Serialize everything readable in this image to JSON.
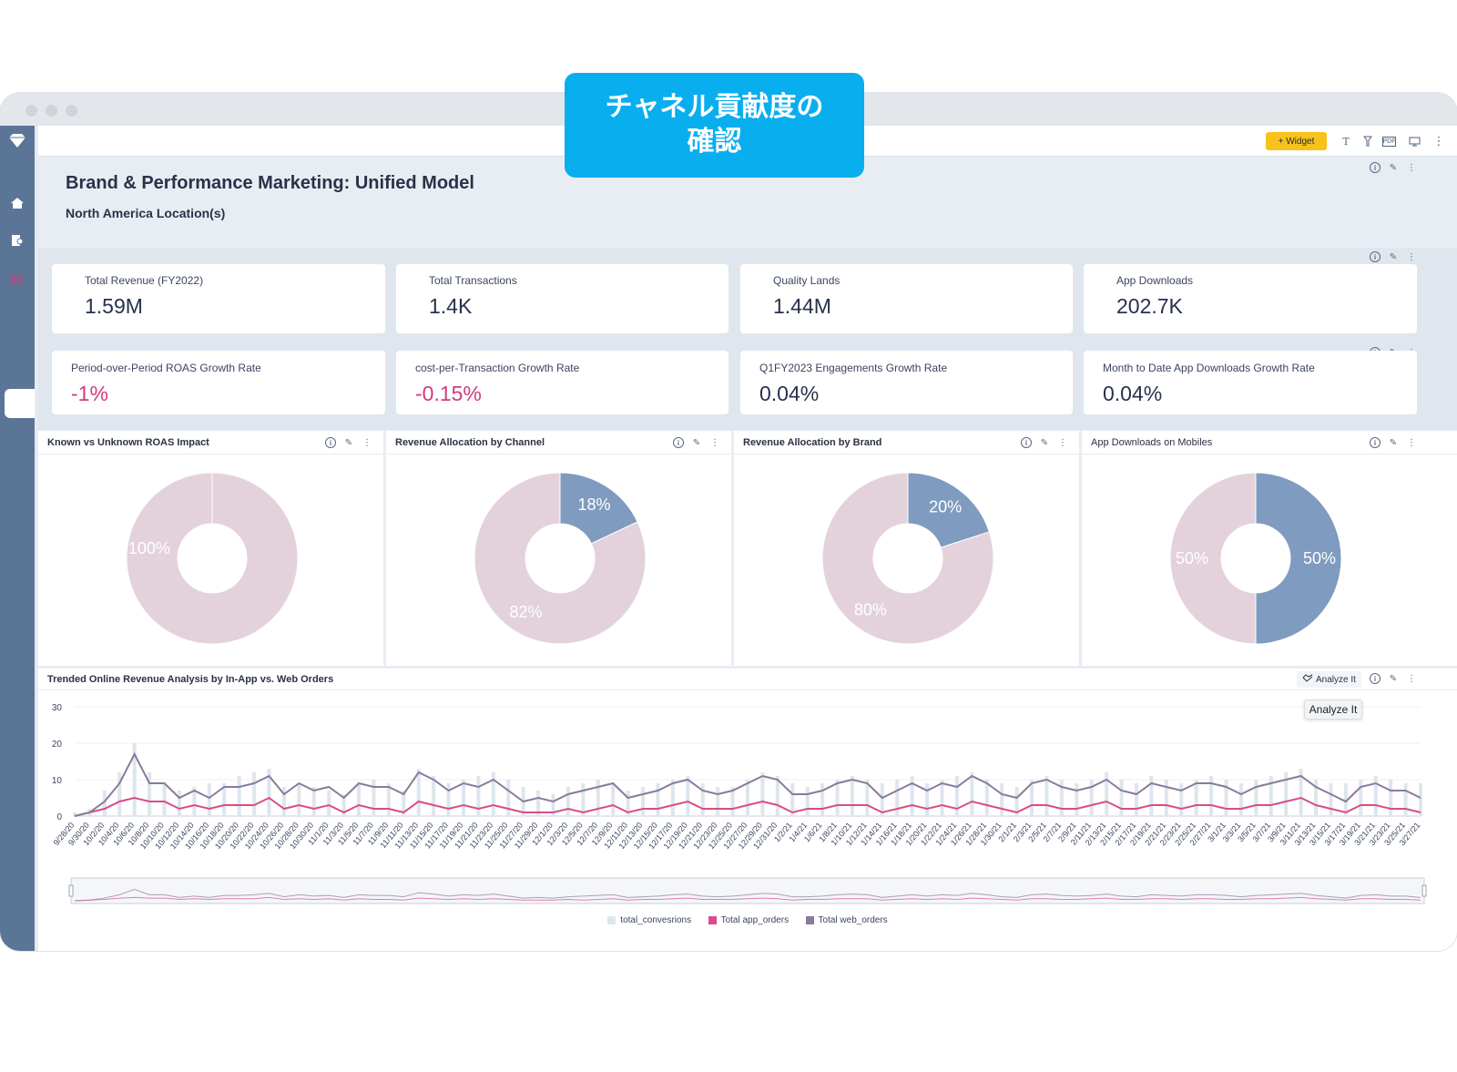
{
  "callout": {
    "line1": "チャネル貢献度の",
    "line2": "確認"
  },
  "toolbar": {
    "widget_label": "+ Widget",
    "text_icon": "T",
    "pdf_label": "PDF"
  },
  "header": {
    "title": "Brand & Performance Marketing: Unified Model",
    "subtitle": "North America Location(s)"
  },
  "kpis_row1": [
    {
      "label": "Total Revenue (FY2022)",
      "value": "1.59M"
    },
    {
      "label": "Total Transactions",
      "value": "1.4K"
    },
    {
      "label": "Quality Lands",
      "value": "1.44M"
    },
    {
      "label": "App Downloads",
      "value": "202.7K"
    }
  ],
  "kpis_row2": [
    {
      "label": "Period-over-Period ROAS Growth Rate",
      "value": "-1%",
      "negative": true
    },
    {
      "label": "cost-per-Transaction Growth Rate",
      "value": "-0.15%",
      "negative": true
    },
    {
      "label": "Q1FY2023 Engagements Growth Rate",
      "value": "0.04%",
      "negative": false
    },
    {
      "label": "Month to Date App Downloads Growth Rate",
      "value": "0.04%",
      "negative": false
    }
  ],
  "donuts": [
    {
      "title": "Known vs Unknown ROAS Impact",
      "bold": true,
      "slices": [
        {
          "label": "100%",
          "value": 100,
          "color": "#e3d2dc"
        }
      ]
    },
    {
      "title": "Revenue Allocation by Channel",
      "bold": true,
      "slices": [
        {
          "label": "82%",
          "value": 82,
          "color": "#e3d2dc"
        },
        {
          "label": "18%",
          "value": 18,
          "color": "#7f9bbf"
        }
      ]
    },
    {
      "title": "Revenue Allocation by Brand",
      "bold": true,
      "slices": [
        {
          "label": "80%",
          "value": 80,
          "color": "#e3d2dc"
        },
        {
          "label": "20%",
          "value": 20,
          "color": "#7f9bbf"
        }
      ]
    },
    {
      "title": "App Downloads on Mobiles",
      "bold": false,
      "slices": [
        {
          "label": "50%",
          "value": 50,
          "color": "#e3d2dc"
        },
        {
          "label": "50%",
          "value": 50,
          "color": "#7f9bbf"
        }
      ]
    }
  ],
  "trend": {
    "title": "Trended Online Revenue Analysis by In-App vs. Web Orders",
    "analyze_label": "Analyze It",
    "tooltip": "Analyze It"
  },
  "chart_data": {
    "type": "line",
    "title": "Trended Online Revenue Analysis by In-App vs. Web Orders",
    "ylim": [
      0,
      30
    ],
    "yticks": [
      "30",
      "20",
      "10",
      "0"
    ],
    "x_labels": [
      "9/28/20",
      "9/30/20",
      "10/2/20",
      "10/4/20",
      "10/6/20",
      "10/8/20",
      "10/10/20",
      "10/12/20",
      "10/14/20",
      "10/16/20",
      "10/18/20",
      "10/20/20",
      "10/22/20",
      "10/24/20",
      "10/26/20",
      "10/28/20",
      "10/30/20",
      "11/1/20",
      "11/3/20",
      "11/5/20",
      "11/7/20",
      "11/9/20",
      "11/11/20",
      "11/13/20",
      "11/15/20",
      "11/17/20",
      "11/19/20",
      "11/21/20",
      "11/23/20",
      "11/25/20",
      "11/27/20",
      "11/29/20",
      "12/1/20",
      "12/3/20",
      "12/5/20",
      "12/7/20",
      "12/9/20",
      "12/11/20",
      "12/13/20",
      "12/15/20",
      "12/17/20",
      "12/19/20",
      "12/21/20",
      "12/23/20",
      "12/25/20",
      "12/27/20",
      "12/29/20",
      "12/31/20",
      "1/2/21",
      "1/4/21",
      "1/6/21",
      "1/8/21",
      "1/10/21",
      "1/12/21",
      "1/14/21",
      "1/16/21",
      "1/18/21",
      "1/20/21",
      "1/22/21",
      "1/24/21",
      "1/26/21",
      "1/28/21",
      "1/30/21",
      "2/1/21",
      "2/3/21",
      "2/5/21",
      "2/7/21",
      "2/9/21",
      "2/11/21",
      "2/13/21",
      "2/15/21",
      "2/17/21",
      "2/19/21",
      "2/21/21",
      "2/23/21",
      "2/25/21",
      "2/27/21",
      "3/1/21",
      "3/3/21",
      "3/5/21",
      "3/7/21",
      "3/9/21",
      "3/11/21",
      "3/13/21",
      "3/15/21",
      "3/17/21",
      "3/19/21",
      "3/21/21",
      "3/23/21",
      "3/25/21",
      "3/27/21"
    ],
    "legend_colors": [
      "#dde6ec",
      "#d94b8c",
      "#8a7a9c"
    ],
    "series": [
      {
        "name": "total_convesrions",
        "kind": "bar",
        "color": "#dde6ec",
        "values": [
          1,
          2,
          7,
          12,
          20,
          12,
          9,
          7,
          8,
          9,
          9,
          11,
          12,
          13,
          8,
          9,
          8,
          7,
          6,
          9,
          10,
          9,
          7,
          13,
          11,
          9,
          10,
          11,
          12,
          10,
          8,
          7,
          6,
          8,
          9,
          10,
          9,
          7,
          8,
          9,
          10,
          11,
          9,
          8,
          8,
          10,
          12,
          11,
          9,
          8,
          9,
          10,
          11,
          10,
          9,
          10,
          11,
          9,
          10,
          11,
          12,
          10,
          9,
          8,
          10,
          11,
          10,
          9,
          10,
          12,
          10,
          9,
          11,
          10,
          9,
          10,
          11,
          10,
          9,
          10,
          11,
          12,
          13,
          10,
          9,
          9,
          10,
          11,
          10,
          9,
          9
        ]
      },
      {
        "name": "Total app_orders",
        "kind": "line",
        "color": "#d94b8c",
        "values": [
          0,
          1,
          2,
          4,
          5,
          4,
          4,
          2,
          3,
          2,
          3,
          3,
          3,
          5,
          2,
          3,
          2,
          3,
          1,
          3,
          2,
          2,
          1,
          4,
          3,
          2,
          3,
          2,
          3,
          2,
          1,
          1,
          1,
          2,
          1,
          2,
          3,
          1,
          2,
          2,
          3,
          4,
          2,
          2,
          2,
          3,
          4,
          3,
          1,
          2,
          2,
          3,
          3,
          3,
          1,
          2,
          3,
          2,
          3,
          2,
          4,
          3,
          2,
          1,
          3,
          3,
          2,
          2,
          3,
          4,
          2,
          2,
          3,
          3,
          2,
          3,
          3,
          2,
          2,
          3,
          3,
          4,
          5,
          3,
          2,
          1,
          3,
          3,
          2,
          2,
          1
        ]
      },
      {
        "name": "Total web_orders",
        "kind": "line",
        "color": "#8a7a9c",
        "values": [
          0,
          1,
          4,
          9,
          17,
          9,
          9,
          5,
          7,
          5,
          8,
          8,
          9,
          11,
          6,
          9,
          7,
          8,
          5,
          9,
          8,
          8,
          6,
          12,
          10,
          7,
          9,
          8,
          10,
          7,
          4,
          5,
          4,
          6,
          7,
          8,
          9,
          5,
          6,
          7,
          9,
          10,
          7,
          6,
          7,
          9,
          11,
          10,
          6,
          6,
          7,
          9,
          10,
          9,
          5,
          7,
          9,
          7,
          9,
          8,
          11,
          9,
          6,
          5,
          9,
          10,
          8,
          7,
          8,
          10,
          7,
          6,
          9,
          8,
          7,
          9,
          9,
          8,
          6,
          8,
          9,
          10,
          11,
          8,
          6,
          4,
          8,
          9,
          7,
          7,
          5
        ]
      }
    ]
  }
}
